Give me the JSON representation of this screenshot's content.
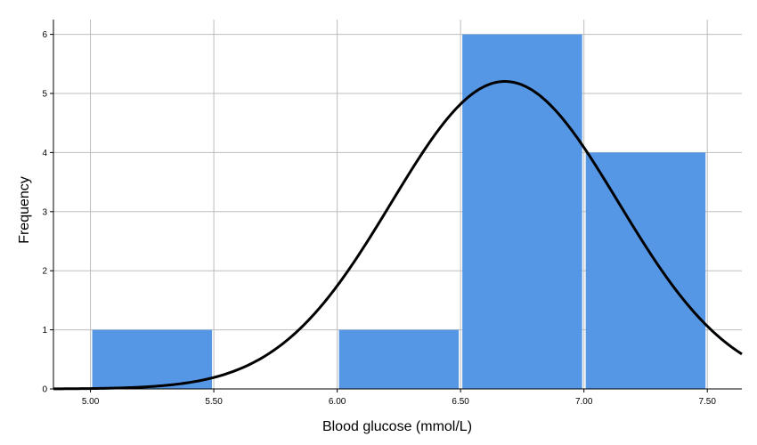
{
  "chart_data": {
    "type": "bar",
    "xlabel": "Blood glucose (mmol/L)",
    "ylabel": "Frequency",
    "xlim": [
      4.85,
      7.64
    ],
    "ylim": [
      0,
      6.25
    ],
    "x_ticks": [
      "5.00",
      "5.50",
      "6.00",
      "6.50",
      "7.00",
      "7.50"
    ],
    "x_tick_values": [
      5.0,
      5.5,
      6.0,
      6.5,
      7.0,
      7.5
    ],
    "y_ticks": [
      0,
      1,
      2,
      3,
      4,
      5,
      6
    ],
    "bins": [
      {
        "from": 5.0,
        "to": 5.5,
        "value": 1
      },
      {
        "from": 5.5,
        "to": 6.0,
        "value": 0
      },
      {
        "from": 6.0,
        "to": 6.5,
        "value": 1
      },
      {
        "from": 6.5,
        "to": 7.0,
        "value": 6
      },
      {
        "from": 7.0,
        "to": 7.5,
        "value": 4
      }
    ],
    "normal_curve": {
      "mean": 6.68,
      "std_dev": 0.46,
      "n": 12,
      "bin_width": 0.5
    },
    "grid": true,
    "bar_color": "#5597E5",
    "curve_color": "#000000",
    "gridline_color": "#BDBDBD"
  }
}
